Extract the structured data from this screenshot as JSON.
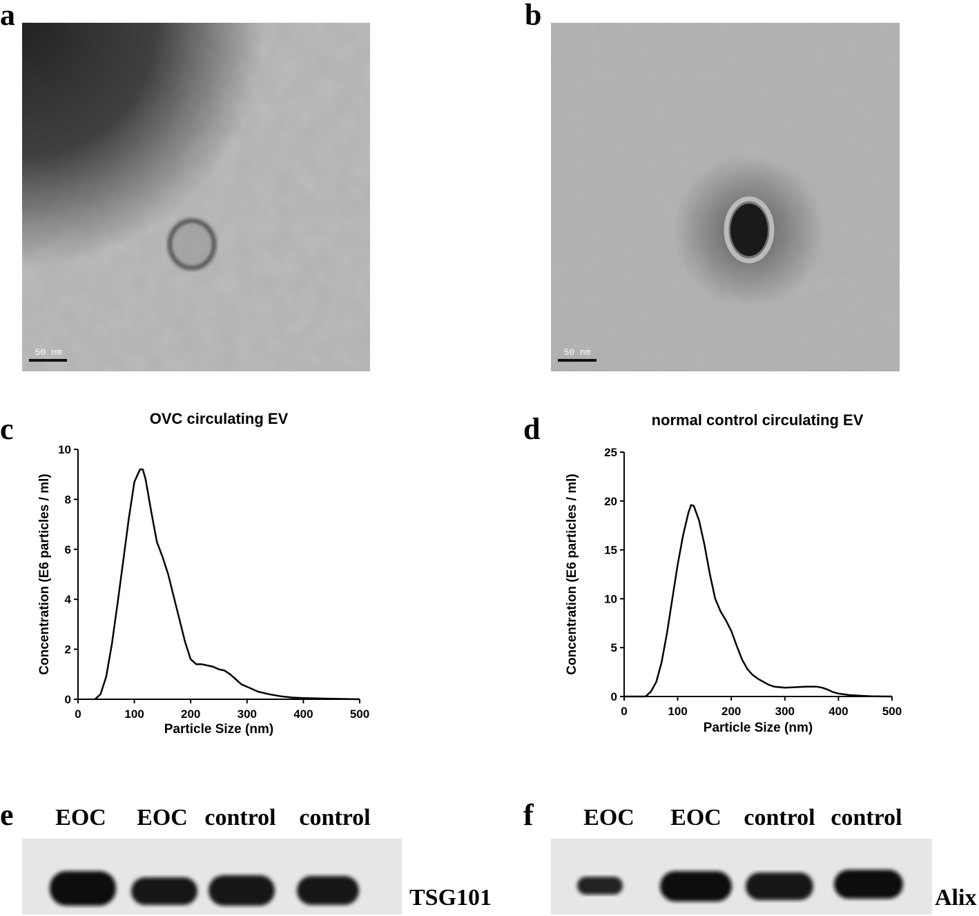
{
  "panels": [
    {
      "label": "a",
      "scale_bar": "50 nm"
    },
    {
      "label": "b",
      "scale_bar": "50 nm"
    }
  ],
  "chart_data": [
    {
      "type": "line",
      "label": "c",
      "title": "OVC circulating EV",
      "x_label": "Particle Size (nm)",
      "y_label": "Concentration (E6 particles / ml)",
      "x": [
        30,
        40,
        50,
        60,
        70,
        80,
        90,
        100,
        110,
        115,
        120,
        130,
        140,
        150,
        160,
        170,
        180,
        190,
        200,
        210,
        220,
        230,
        240,
        250,
        260,
        270,
        280,
        290,
        300,
        320,
        340,
        360,
        380,
        400,
        450,
        500
      ],
      "values": [
        0,
        0.2,
        0.9,
        2.2,
        3.8,
        5.5,
        7.2,
        8.7,
        9.2,
        9.2,
        8.8,
        7.5,
        6.3,
        5.7,
        5.0,
        4.1,
        3.2,
        2.3,
        1.6,
        1.4,
        1.4,
        1.35,
        1.3,
        1.2,
        1.15,
        1.0,
        0.8,
        0.6,
        0.5,
        0.3,
        0.2,
        0.12,
        0.07,
        0.05,
        0.02,
        0
      ],
      "color": "#000000",
      "xlim": [
        0,
        500
      ],
      "xticks": [
        0,
        100,
        200,
        300,
        400,
        500
      ],
      "ylim": [
        0,
        10
      ],
      "yticks": [
        0,
        2,
        4,
        6,
        8,
        10
      ],
      "grid": false
    },
    {
      "type": "line",
      "label": "d",
      "title": "normal control circulating EV",
      "x_label": "Particle Size (nm)",
      "y_label": "Concentration (E6 particles / ml)",
      "x": [
        0,
        40,
        50,
        60,
        70,
        80,
        90,
        100,
        110,
        120,
        125,
        130,
        140,
        150,
        160,
        170,
        180,
        190,
        200,
        210,
        220,
        230,
        240,
        250,
        260,
        270,
        280,
        290,
        300,
        320,
        340,
        360,
        370,
        380,
        390,
        400,
        420,
        440,
        460,
        480,
        500
      ],
      "values": [
        0,
        0,
        0.5,
        1.5,
        3.5,
        6.5,
        10,
        13.5,
        16.5,
        18.8,
        19.6,
        19.5,
        18,
        15.5,
        12.5,
        10,
        8.7,
        7.8,
        6.7,
        5.2,
        3.8,
        2.8,
        2.2,
        1.8,
        1.5,
        1.2,
        1.0,
        0.95,
        0.9,
        0.95,
        1.0,
        1.0,
        0.9,
        0.7,
        0.45,
        0.3,
        0.15,
        0.08,
        0.03,
        0.01,
        0
      ],
      "color": "#000000",
      "xlim": [
        0,
        500
      ],
      "xticks": [
        0,
        100,
        200,
        300,
        400,
        500
      ],
      "ylim": [
        0,
        25
      ],
      "yticks": [
        0,
        5,
        10,
        15,
        20,
        25
      ],
      "grid": false
    }
  ],
  "blots": [
    {
      "label": "e",
      "lanes": [
        "EOC",
        "EOC",
        "control",
        "control"
      ],
      "protein": "TSG101"
    },
    {
      "label": "f",
      "lanes": [
        "EOC",
        "EOC",
        "control",
        "control"
      ],
      "protein": "Alix"
    }
  ]
}
